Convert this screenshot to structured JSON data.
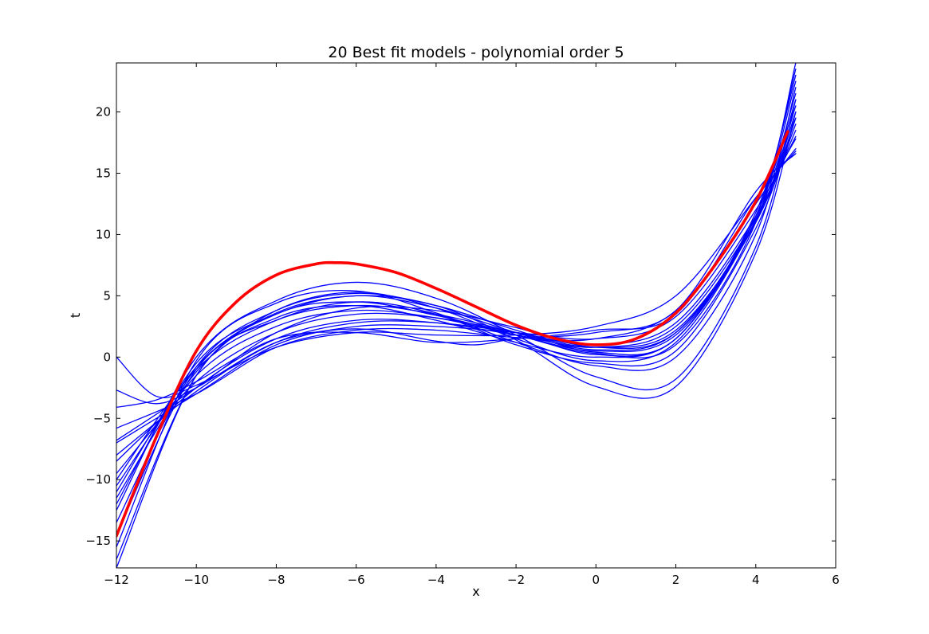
{
  "chart_data": {
    "type": "line",
    "title": "20 Best fit models - polynomial order 5",
    "xlabel": "x",
    "ylabel": "t",
    "xlim": [
      -12,
      6
    ],
    "ylim": [
      -17.2,
      24
    ],
    "xticks": [
      -12,
      -10,
      -8,
      -6,
      -4,
      -2,
      0,
      2,
      4,
      6
    ],
    "yticks": [
      -15,
      -10,
      -5,
      0,
      5,
      10,
      15,
      20
    ],
    "xtick_labels": [
      "−12",
      "−10",
      "−8",
      "−6",
      "−4",
      "−2",
      "0",
      "2",
      "4",
      "6"
    ],
    "ytick_labels": [
      "−15",
      "−10",
      "−5",
      "0",
      "5",
      "10",
      "15",
      "20"
    ],
    "grid": false,
    "legend": "none",
    "colors": {
      "models": "#0000ff",
      "true_function": "#ff0000"
    },
    "series": [
      {
        "color": "#0000ff",
        "width": 1.3,
        "points": [
          [
            -12,
            -16.5
          ],
          [
            -10,
            -1.5
          ],
          [
            -8,
            3.5
          ],
          [
            -6,
            4.5
          ],
          [
            -4,
            3.4
          ],
          [
            -2,
            1.8
          ],
          [
            0,
            0.3
          ],
          [
            2,
            1.0
          ],
          [
            4,
            11.0
          ],
          [
            5,
            24.0
          ]
        ]
      },
      {
        "color": "#0000ff",
        "width": 1.3,
        "points": [
          [
            -12,
            -14.5
          ],
          [
            -10,
            -1.0
          ],
          [
            -8,
            3.0
          ],
          [
            -6,
            4.2
          ],
          [
            -4,
            3.5
          ],
          [
            -2,
            2.0
          ],
          [
            0,
            0.6
          ],
          [
            2,
            2.0
          ],
          [
            4,
            11.5
          ],
          [
            5,
            22.5
          ]
        ]
      },
      {
        "color": "#0000ff",
        "width": 1.3,
        "points": [
          [
            -12,
            -12.0
          ],
          [
            -10,
            -0.5
          ],
          [
            -8,
            3.5
          ],
          [
            -6,
            5.0
          ],
          [
            -4,
            4.0
          ],
          [
            -2,
            2.0
          ],
          [
            0,
            0.2
          ],
          [
            2,
            1.5
          ],
          [
            4,
            11.5
          ],
          [
            5,
            21.5
          ]
        ]
      },
      {
        "color": "#0000ff",
        "width": 1.3,
        "points": [
          [
            -12,
            -11.5
          ],
          [
            -10,
            -1.2
          ],
          [
            -8,
            3.8
          ],
          [
            -6,
            5.3
          ],
          [
            -4,
            4.0
          ],
          [
            -2,
            1.5
          ],
          [
            0,
            -0.3
          ],
          [
            2,
            1.2
          ],
          [
            4,
            11.2
          ],
          [
            5,
            21.0
          ]
        ]
      },
      {
        "color": "#0000ff",
        "width": 1.3,
        "points": [
          [
            -12,
            -10.5
          ],
          [
            -10,
            -1.5
          ],
          [
            -8,
            2.5
          ],
          [
            -6,
            3.8
          ],
          [
            -4,
            3.2
          ],
          [
            -2,
            1.8
          ],
          [
            0,
            0.5
          ],
          [
            2,
            1.8
          ],
          [
            4,
            11.0
          ],
          [
            5,
            20.0
          ]
        ]
      },
      {
        "color": "#0000ff",
        "width": 1.3,
        "points": [
          [
            -12,
            -9.5
          ],
          [
            -10,
            -2.0
          ],
          [
            -8,
            2.0
          ],
          [
            -6,
            3.5
          ],
          [
            -4,
            3.2
          ],
          [
            -2,
            2.0
          ],
          [
            0,
            0.8
          ],
          [
            2,
            2.2
          ],
          [
            4,
            11.0
          ],
          [
            5,
            19.5
          ]
        ]
      },
      {
        "color": "#0000ff",
        "width": 1.3,
        "points": [
          [
            -12,
            -8.5
          ],
          [
            -10,
            -2.5
          ],
          [
            -8,
            1.5
          ],
          [
            -6,
            3.0
          ],
          [
            -4,
            2.8
          ],
          [
            -2,
            1.8
          ],
          [
            0,
            0.8
          ],
          [
            2,
            2.5
          ],
          [
            4,
            11.3
          ],
          [
            5,
            19.0
          ]
        ]
      },
      {
        "color": "#0000ff",
        "width": 1.3,
        "points": [
          [
            -12,
            -8.0
          ],
          [
            -10,
            -2.8
          ],
          [
            -8,
            1.2
          ],
          [
            -6,
            2.8
          ],
          [
            -4,
            2.8
          ],
          [
            -2,
            2.0
          ],
          [
            0,
            1.0
          ],
          [
            2,
            2.8
          ],
          [
            4,
            11.5
          ],
          [
            5,
            18.5
          ]
        ]
      },
      {
        "color": "#0000ff",
        "width": 1.3,
        "points": [
          [
            -12,
            -7.0
          ],
          [
            -10,
            -3.0
          ],
          [
            -8,
            1.0
          ],
          [
            -6,
            2.5
          ],
          [
            -4,
            2.5
          ],
          [
            -2,
            2.0
          ],
          [
            0,
            1.5
          ],
          [
            2,
            3.3
          ],
          [
            4,
            12.0
          ],
          [
            5,
            18.0
          ]
        ]
      },
      {
        "color": "#0000ff",
        "width": 1.3,
        "points": [
          [
            -12,
            -6.8
          ],
          [
            -10,
            -2.5
          ],
          [
            -8,
            2.0
          ],
          [
            -6,
            4.0
          ],
          [
            -4,
            3.8
          ],
          [
            -2,
            2.4
          ],
          [
            0,
            0.8
          ],
          [
            2,
            2.0
          ],
          [
            4,
            11.0
          ],
          [
            5,
            20.5
          ]
        ]
      },
      {
        "color": "#0000ff",
        "width": 1.3,
        "points": [
          [
            -12,
            -13.5
          ],
          [
            -10,
            -0.8
          ],
          [
            -8,
            3.8
          ],
          [
            -6,
            5.2
          ],
          [
            -4,
            4.2
          ],
          [
            -2,
            2.2
          ],
          [
            0,
            0.4
          ],
          [
            2,
            1.5
          ],
          [
            4,
            11.8
          ],
          [
            5,
            23.0
          ]
        ]
      },
      {
        "color": "#0000ff",
        "width": 1.3,
        "points": [
          [
            -12,
            -15.5
          ],
          [
            -10,
            -0.3
          ],
          [
            -8,
            4.4
          ],
          [
            -6,
            5.4
          ],
          [
            -4,
            3.6
          ],
          [
            -2,
            1.2
          ],
          [
            0,
            -0.7
          ],
          [
            2,
            0.0
          ],
          [
            4,
            10.0
          ],
          [
            5,
            22.0
          ]
        ]
      },
      {
        "color": "#0000ff",
        "width": 1.3,
        "points": [
          [
            -12,
            -12.5
          ],
          [
            -10,
            0.0
          ],
          [
            -8,
            4.6
          ],
          [
            -6,
            6.1
          ],
          [
            -4,
            4.8
          ],
          [
            -2,
            1.8
          ],
          [
            0,
            -1.6
          ],
          [
            2,
            -1.8
          ],
          [
            4,
            9.0
          ],
          [
            5,
            21.0
          ]
        ]
      },
      {
        "color": "#0000ff",
        "width": 1.3,
        "points": [
          [
            -12,
            -11.0
          ],
          [
            -10,
            -0.8
          ],
          [
            -8,
            3.6
          ],
          [
            -6,
            5.0
          ],
          [
            -4,
            4.2
          ],
          [
            -2,
            1.4
          ],
          [
            0,
            -2.4
          ],
          [
            2,
            -2.4
          ],
          [
            4,
            8.5
          ],
          [
            5,
            20.0
          ]
        ]
      },
      {
        "color": "#0000ff",
        "width": 1.3,
        "points": [
          [
            -12,
            -10.0
          ],
          [
            -10,
            -1.0
          ],
          [
            -8,
            3.0
          ],
          [
            -6,
            4.5
          ],
          [
            -4,
            3.5
          ],
          [
            -2,
            1.0
          ],
          [
            0,
            -0.5
          ],
          [
            2,
            0.5
          ],
          [
            4,
            10.5
          ],
          [
            5,
            19.5
          ]
        ]
      },
      {
        "color": "#0000ff",
        "width": 1.3,
        "points": [
          [
            -12,
            0.0
          ],
          [
            -11,
            -3.2
          ],
          [
            -10,
            -2.3
          ],
          [
            -8,
            0.8
          ],
          [
            -6,
            2.0
          ],
          [
            -4,
            1.8
          ],
          [
            -2,
            1.8
          ],
          [
            0,
            2.5
          ],
          [
            2,
            5.0
          ],
          [
            4,
            13.0
          ],
          [
            5,
            17.0
          ]
        ]
      },
      {
        "color": "#0000ff",
        "width": 1.3,
        "points": [
          [
            -12,
            -2.7
          ],
          [
            -11,
            -3.8
          ],
          [
            -10,
            -2.5
          ],
          [
            -8,
            1.2
          ],
          [
            -6,
            2.3
          ],
          [
            -4,
            1.3
          ],
          [
            -3,
            1.0
          ],
          [
            -2,
            1.5
          ],
          [
            0,
            2.0
          ],
          [
            2,
            3.8
          ],
          [
            4,
            13.5
          ],
          [
            5,
            16.6
          ]
        ]
      },
      {
        "color": "#0000ff",
        "width": 1.3,
        "points": [
          [
            -12,
            -4.1
          ],
          [
            -11,
            -3.5
          ],
          [
            -10,
            -2.0
          ],
          [
            -8,
            1.5
          ],
          [
            -6,
            2.0
          ],
          [
            -4,
            1.2
          ],
          [
            -2,
            1.5
          ],
          [
            0,
            2.2
          ],
          [
            2,
            3.5
          ],
          [
            4,
            13.0
          ],
          [
            5,
            16.8
          ]
        ]
      },
      {
        "color": "#0000ff",
        "width": 1.3,
        "points": [
          [
            -12,
            -5.8
          ],
          [
            -10,
            -3.0
          ],
          [
            -8,
            0.8
          ],
          [
            -6,
            2.2
          ],
          [
            -4,
            2.2
          ],
          [
            -2,
            1.6
          ],
          [
            0,
            1.5
          ],
          [
            2,
            3.8
          ],
          [
            4,
            12.5
          ],
          [
            5,
            17.8
          ]
        ]
      },
      {
        "color": "#0000ff",
        "width": 1.3,
        "points": [
          [
            -12,
            -17.2
          ],
          [
            -10,
            -1.5
          ],
          [
            -8,
            3.2
          ],
          [
            -6,
            4.2
          ],
          [
            -4,
            3.0
          ],
          [
            -2,
            1.2
          ],
          [
            0,
            0.0
          ],
          [
            2,
            1.5
          ],
          [
            4,
            11.5
          ],
          [
            5,
            23.5
          ]
        ]
      },
      {
        "color": "#ff0000",
        "width": 3.6,
        "points": [
          [
            -12,
            -14.6
          ],
          [
            -11,
            -6.5
          ],
          [
            -10,
            0.5
          ],
          [
            -9,
            4.5
          ],
          [
            -8,
            6.7
          ],
          [
            -7,
            7.6
          ],
          [
            -6.5,
            7.7
          ],
          [
            -6,
            7.6
          ],
          [
            -5,
            6.9
          ],
          [
            -4,
            5.6
          ],
          [
            -3,
            4.1
          ],
          [
            -2,
            2.6
          ],
          [
            -1,
            1.5
          ],
          [
            0,
            1.0
          ],
          [
            1,
            1.5
          ],
          [
            2,
            3.6
          ],
          [
            3,
            7.6
          ],
          [
            4,
            12.7
          ],
          [
            4.8,
            18.4
          ]
        ]
      }
    ]
  }
}
